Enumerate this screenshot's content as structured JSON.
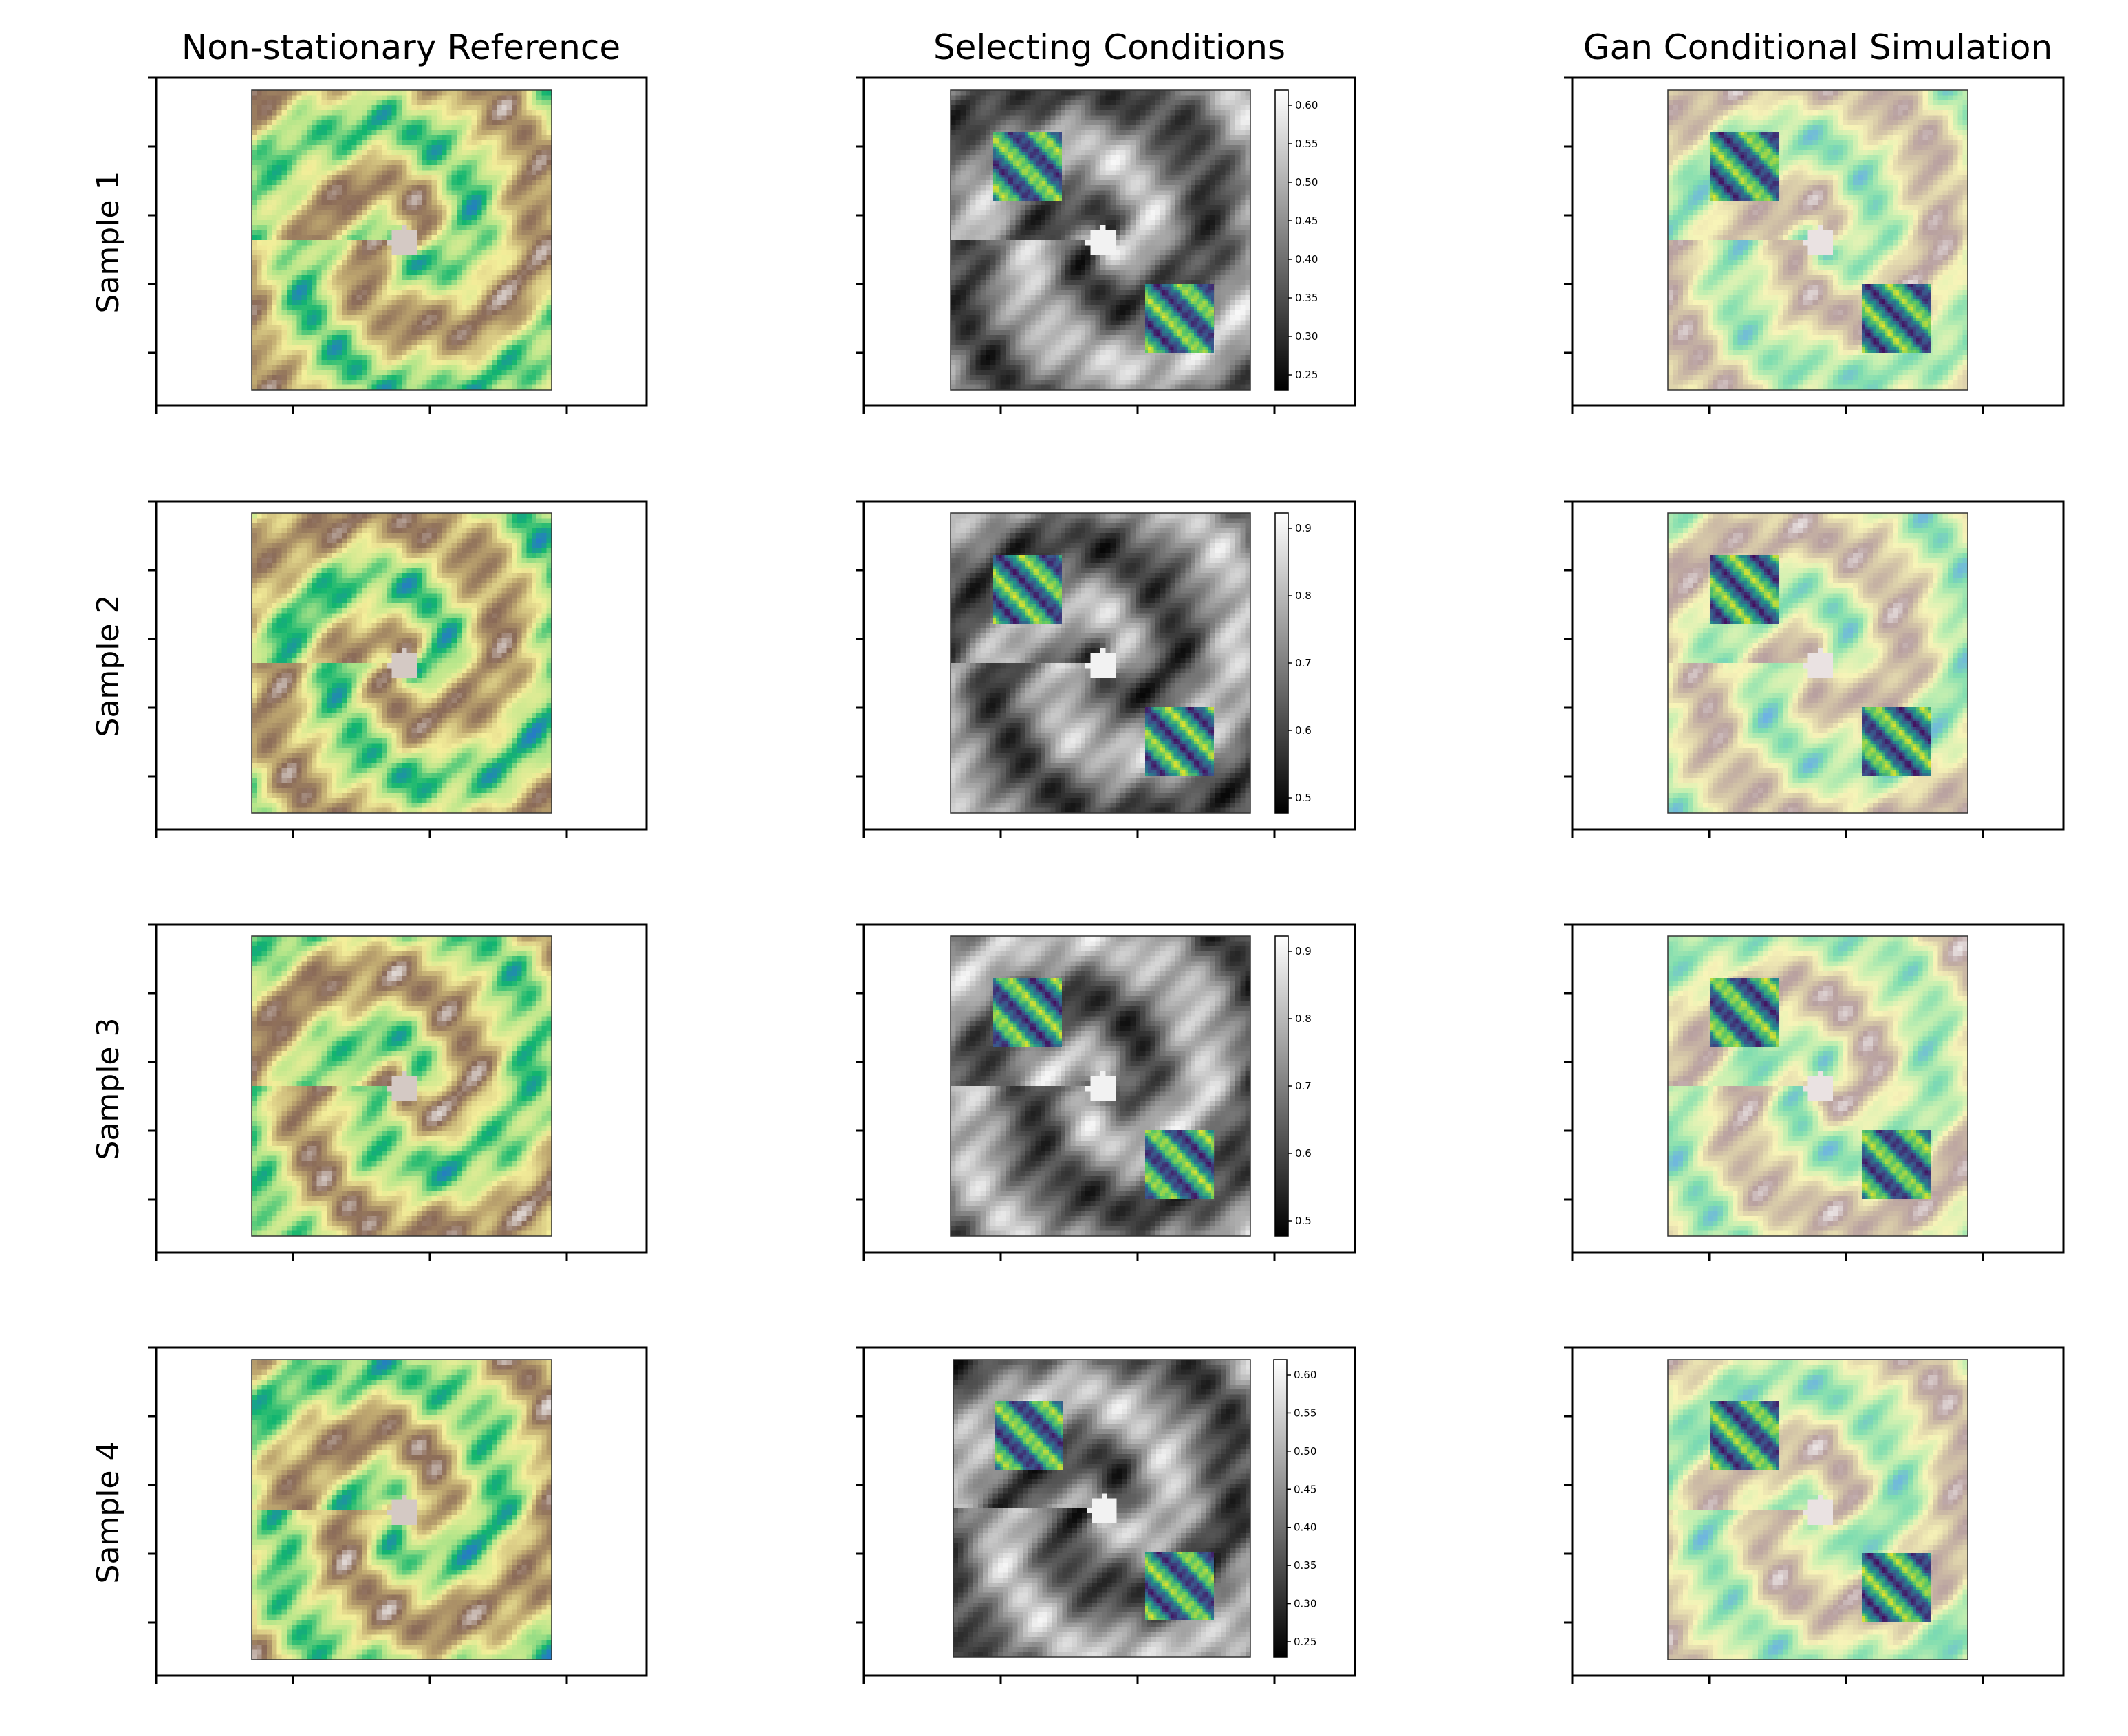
{
  "figure": {
    "column_titles": [
      "Non-stationary Reference",
      "Selecting Conditions",
      "Gan Conditional Simulation"
    ],
    "row_labels": [
      "Sample 1",
      "Sample 2",
      "Sample 3",
      "Sample 4"
    ]
  },
  "colormaps": {
    "terrain_like": [
      "#2a6fd8",
      "#12b56e",
      "#b6e68a",
      "#f4ee9a",
      "#bfa870",
      "#8a6a58",
      "#f4f2f2"
    ],
    "terrain_faded": [
      "#6aa8f0",
      "#7ddcb0",
      "#c4efb0",
      "#f8f4b8",
      "#d6c8a8",
      "#b8a0a0",
      "#ffffff"
    ],
    "viridis": [
      "#440154",
      "#3b528b",
      "#21918c",
      "#5ec962",
      "#fde725"
    ],
    "grayscale": [
      "#000000",
      "#ffffff"
    ]
  },
  "colorbars": [
    {
      "sample": "Sample 1",
      "ticks": [
        "0.60",
        "0.55",
        "0.50",
        "0.45",
        "0.40",
        "0.35",
        "0.30",
        "0.25"
      ]
    },
    {
      "sample": "Sample 2",
      "ticks": [
        "0.9",
        "0.8",
        "0.7",
        "0.6",
        "0.5"
      ]
    },
    {
      "sample": "Sample 3",
      "ticks": [
        "0.9",
        "0.8",
        "0.7",
        "0.6",
        "0.5"
      ]
    },
    {
      "sample": "Sample 4",
      "ticks": [
        "0.60",
        "0.55",
        "0.50",
        "0.45",
        "0.40",
        "0.35",
        "0.30",
        "0.25"
      ]
    }
  ]
}
